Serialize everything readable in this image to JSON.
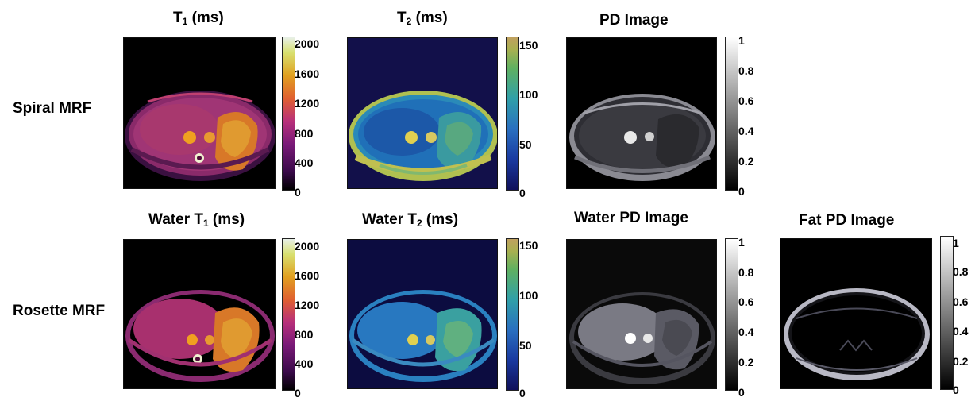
{
  "row_labels": [
    "Spiral MRF",
    "Rosette MRF"
  ],
  "titles": {
    "t1": {
      "prefix": "T",
      "sub": "1",
      "suffix": " (ms)"
    },
    "t2": {
      "prefix": "T",
      "sub": "2",
      "suffix": " (ms)"
    },
    "pd": "PD Image",
    "water_t1": {
      "prefix": "Water T",
      "sub": "1",
      "suffix": " (ms)"
    },
    "water_t2": {
      "prefix": "Water T",
      "sub": "2",
      "suffix": " (ms)"
    },
    "water_pd": "Water PD Image",
    "fat_pd": "Fat PD Image"
  },
  "colorbars": {
    "t1_ticks": [
      "2000",
      "1600",
      "1200",
      "800",
      "400",
      "0"
    ],
    "t2_ticks": [
      "150",
      "100",
      "50",
      "0"
    ],
    "pd_ticks": [
      "1",
      "0.8",
      "0.6",
      "0.4",
      "0.2",
      "0"
    ]
  },
  "colormaps": {
    "t1": [
      "#000000",
      "#3a0a4a",
      "#7a1a78",
      "#b8307a",
      "#e06030",
      "#e0a020",
      "#d8e070",
      "#e8f0e8"
    ],
    "t2": [
      "#10105a",
      "#1a3aa0",
      "#2a70c0",
      "#30a0a8",
      "#60b060",
      "#a8b050",
      "#c0a060"
    ],
    "pd": [
      "#000000",
      "#ffffff"
    ]
  }
}
